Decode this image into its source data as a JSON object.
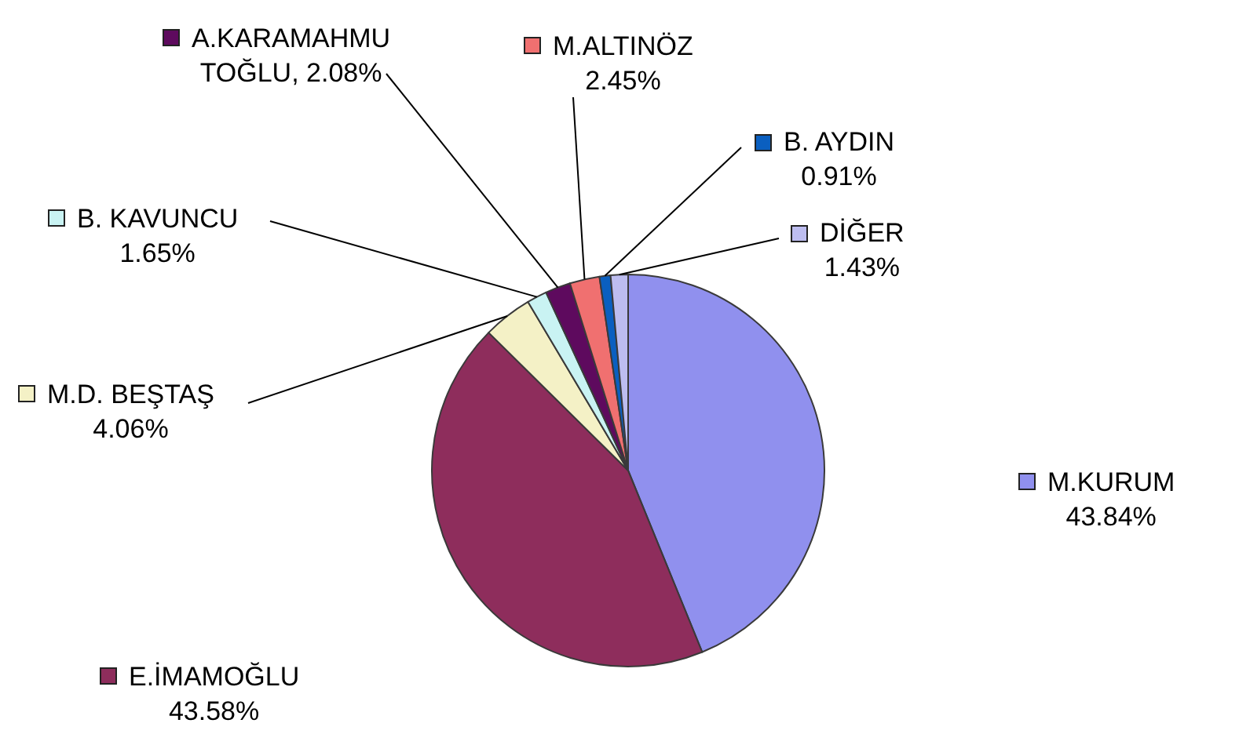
{
  "chart_data": {
    "type": "pie",
    "categories": [
      "M.KURUM",
      "E.İMAMOĞLU",
      "M.D. BEŞTAŞ",
      "B. KAVUNCU",
      "A.KARAMAHMUTOĞLU",
      "M.ALTINÖZ",
      "B. AYDIN",
      "DİĞER"
    ],
    "values": [
      43.84,
      43.58,
      4.06,
      1.65,
      2.08,
      2.45,
      0.91,
      1.43
    ],
    "value_labels": [
      "43.84%",
      "43.58%",
      "4.06%",
      "1.65%",
      "2.08%",
      "2.45%",
      "0.91%",
      "1.43%"
    ],
    "colors": [
      "#9090ee",
      "#8e2d5c",
      "#f4f1c6",
      "#c9f3f3",
      "#5e0a5e",
      "#f07070",
      "#0a5fc0",
      "#bdbdf0"
    ],
    "legend": true
  }
}
